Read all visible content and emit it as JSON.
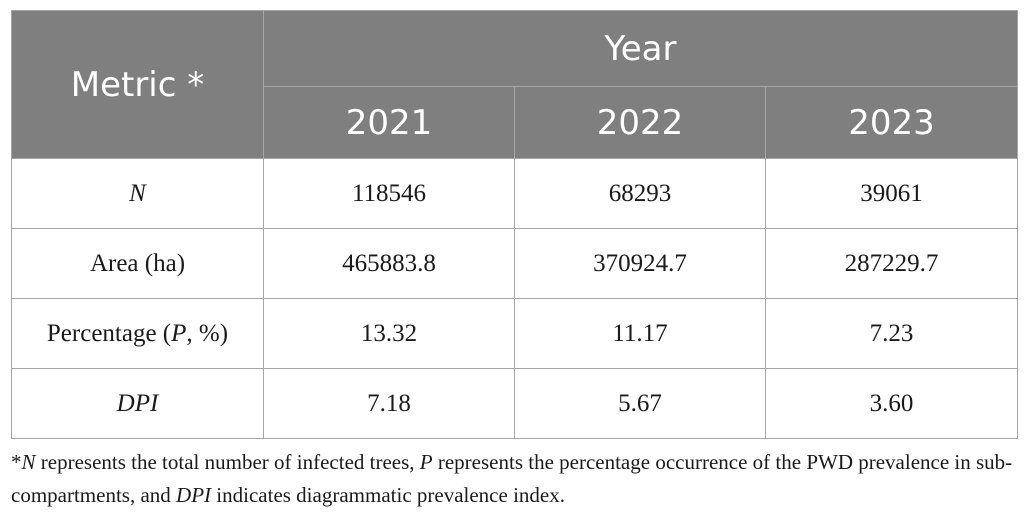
{
  "table": {
    "metric_header": "Metric *",
    "year_header": "Year",
    "years": [
      "2021",
      "2022",
      "2023"
    ],
    "rows": [
      {
        "label_pre": "",
        "label_italic": "N",
        "label_post": "",
        "values": [
          "118546",
          "68293",
          "39061"
        ]
      },
      {
        "label_pre": "Area (ha)",
        "label_italic": "",
        "label_post": "",
        "values": [
          "465883.8",
          "370924.7",
          "287229.7"
        ]
      },
      {
        "label_pre": "Percentage (",
        "label_italic": "P",
        "label_post": ", %)",
        "values": [
          "13.32",
          "11.17",
          "7.23"
        ]
      },
      {
        "label_pre": "",
        "label_italic": "DPI",
        "label_post": "",
        "values": [
          "7.18",
          "5.67",
          "3.60"
        ]
      }
    ]
  },
  "footnote": {
    "star": "*",
    "n": "N",
    "part1": " represents the total number of infected trees, ",
    "p": "P",
    "part2": " represents the percentage occurrence of the PWD prevalence in sub-compartments, and ",
    "dpi": "DPI",
    "part3": " indicates diagrammatic prevalence index."
  }
}
